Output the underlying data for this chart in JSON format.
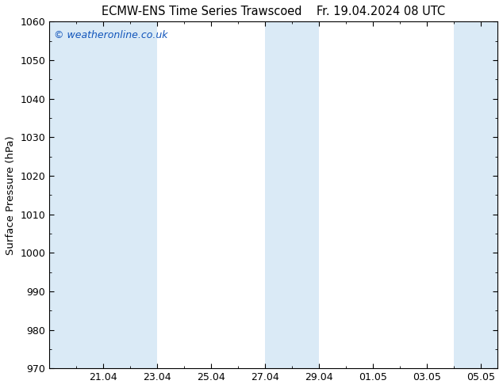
{
  "title": "ECMW-ENS Time Series Trawscoed    Fr. 19.04.2024 08 UTC",
  "ylabel": "Surface Pressure (hPa)",
  "ylim": [
    970,
    1060
  ],
  "yticks": [
    970,
    980,
    990,
    1000,
    1010,
    1020,
    1030,
    1040,
    1050,
    1060
  ],
  "xlim": [
    19.0,
    35.6
  ],
  "xtick_positions": [
    21.0,
    23.0,
    25.0,
    27.0,
    29.0,
    31.0,
    33.0,
    35.0
  ],
  "xtick_labels": [
    "21.04",
    "23.04",
    "25.04",
    "27.04",
    "29.04",
    "01.05",
    "03.05",
    "05.05"
  ],
  "shaded_bands": [
    {
      "xstart": 19.0,
      "xend": 23.0
    },
    {
      "xstart": 27.0,
      "xend": 29.0
    },
    {
      "xstart": 34.0,
      "xend": 35.6
    }
  ],
  "band_color": "#daeaf6",
  "background_color": "#ffffff",
  "watermark": "© weatheronline.co.uk",
  "watermark_color": "#1155bb",
  "title_fontsize": 10.5,
  "ylabel_fontsize": 9.5,
  "tick_fontsize": 9,
  "watermark_fontsize": 9
}
